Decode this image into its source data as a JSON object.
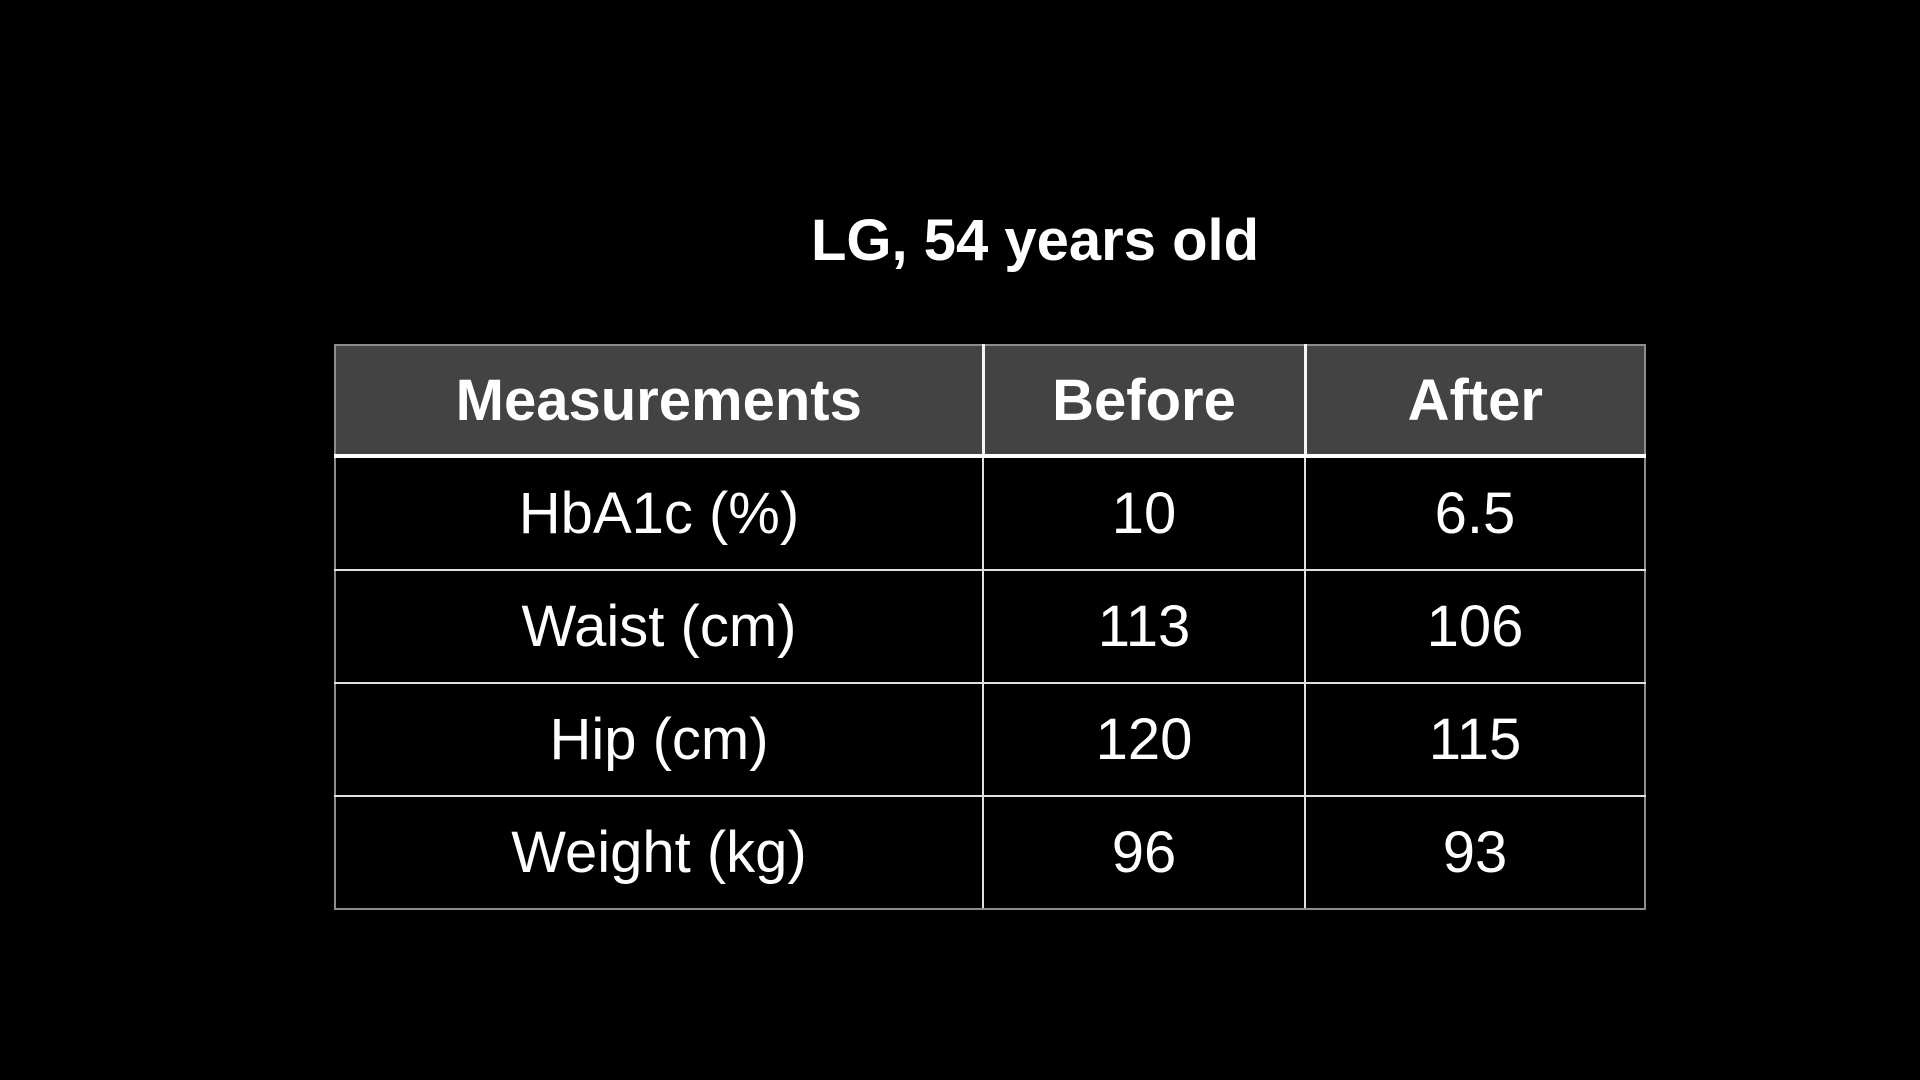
{
  "slide": {
    "background_color": "#000000",
    "text_color": "#ffffff",
    "header_bg_color": "#434343",
    "outer_border_color": "#8c8c8c",
    "inner_line_color": "#f5f5f5"
  },
  "chart_data": {
    "type": "table",
    "title": "LG, 54 years old",
    "columns": [
      "Measurements",
      "Before",
      "After"
    ],
    "rows": [
      [
        "HbA1c (%)",
        "10",
        "6.5"
      ],
      [
        "Waist (cm)",
        "113",
        "106"
      ],
      [
        "Hip (cm)",
        "120",
        "115"
      ],
      [
        "Weight (kg)",
        "96",
        "93"
      ]
    ],
    "layout_hints": {
      "header_style": "dark-gray fill, bold white text",
      "body_style": "black fill, regular white text, all cells center-aligned",
      "grid": "on"
    }
  }
}
